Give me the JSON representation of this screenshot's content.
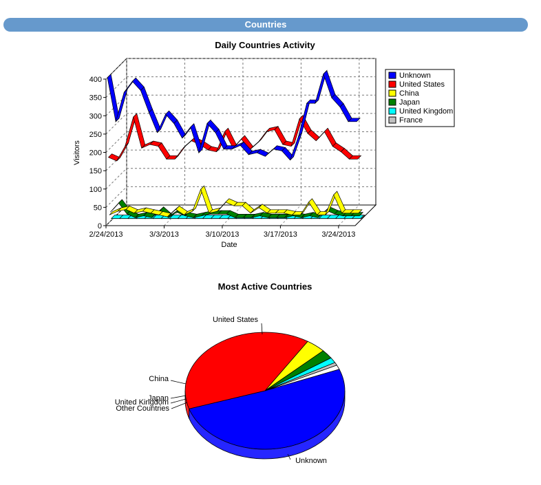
{
  "header": {
    "title": "Countries"
  },
  "chart_data": [
    {
      "type": "line",
      "title": "Daily Countries Activity",
      "xlabel": "Date",
      "ylabel": "Visitors",
      "ylim": [
        0,
        400
      ],
      "yticks": [
        "0",
        "50",
        "100",
        "150",
        "200",
        "250",
        "300",
        "350",
        "400"
      ],
      "xticks": [
        "2/24/2013",
        "3/3/2013",
        "3/10/2013",
        "3/17/2013",
        "3/24/2013"
      ],
      "grid": true,
      "legend": "right",
      "x": [
        "2/24/2013",
        "2/25/2013",
        "2/26/2013",
        "2/27/2013",
        "2/28/2013",
        "3/1/2013",
        "3/2/2013",
        "3/3/2013",
        "3/4/2013",
        "3/5/2013",
        "3/6/2013",
        "3/7/2013",
        "3/8/2013",
        "3/9/2013",
        "3/10/2013",
        "3/11/2013",
        "3/12/2013",
        "3/13/2013",
        "3/14/2013",
        "3/15/2013",
        "3/16/2013",
        "3/17/2013",
        "3/18/2013",
        "3/19/2013",
        "3/20/2013",
        "3/21/2013",
        "3/22/2013",
        "3/23/2013",
        "3/24/2013",
        "3/25/2013",
        "3/26/2013"
      ],
      "series": [
        {
          "name": "Unknown",
          "color": "#0000ff",
          "values": [
            400,
            280,
            360,
            390,
            365,
            305,
            250,
            300,
            275,
            235,
            265,
            195,
            275,
            250,
            205,
            205,
            215,
            190,
            195,
            185,
            205,
            200,
            175,
            240,
            330,
            330,
            410,
            345,
            320,
            280,
            280
          ]
        },
        {
          "name": "United States",
          "color": "#ff0000",
          "values": [
            180,
            170,
            210,
            290,
            205,
            215,
            210,
            175,
            175,
            205,
            225,
            215,
            200,
            195,
            250,
            205,
            230,
            200,
            220,
            250,
            255,
            215,
            210,
            285,
            245,
            225,
            250,
            210,
            195,
            175,
            175
          ]
        },
        {
          "name": "China",
          "color": "#ffff00",
          "values": [
            20,
            30,
            35,
            25,
            30,
            25,
            20,
            15,
            35,
            20,
            30,
            90,
            25,
            30,
            55,
            45,
            45,
            25,
            40,
            25,
            25,
            25,
            20,
            20,
            55,
            20,
            20,
            75,
            25,
            25,
            25
          ]
        },
        {
          "name": "Japan",
          "color": "#008000",
          "values": [
            25,
            50,
            20,
            10,
            15,
            10,
            30,
            10,
            25,
            15,
            10,
            15,
            20,
            20,
            20,
            10,
            10,
            10,
            15,
            10,
            10,
            10,
            15,
            10,
            15,
            10,
            30,
            20,
            15,
            15,
            15
          ]
        },
        {
          "name": "United Kingdom",
          "color": "#00ffff",
          "values": [
            5,
            5,
            5,
            5,
            5,
            5,
            5,
            5,
            5,
            5,
            5,
            5,
            5,
            5,
            5,
            5,
            5,
            5,
            5,
            5,
            5,
            5,
            5,
            5,
            5,
            5,
            5,
            5,
            5,
            5,
            5
          ]
        },
        {
          "name": "France",
          "color": "#c0c0c0",
          "values": [
            2,
            2,
            2,
            2,
            2,
            2,
            2,
            2,
            2,
            2,
            2,
            2,
            2,
            2,
            2,
            2,
            2,
            2,
            2,
            2,
            2,
            2,
            2,
            2,
            2,
            2,
            2,
            2,
            2,
            2,
            2
          ]
        }
      ]
    },
    {
      "type": "pie",
      "title": "Most Active Countries",
      "categories": [
        "Unknown",
        "United States",
        "China",
        "Japan",
        "United Kingdom",
        "France",
        "Other Countries"
      ],
      "values": [
        51,
        39,
        4,
        2.5,
        1.5,
        0.8,
        1.2
      ],
      "colors": [
        "#0000ff",
        "#ff0000",
        "#ffff00",
        "#008000",
        "#00ffff",
        "#c0c0c0",
        "#ffffff"
      ],
      "labels": {
        "unknown": "Unknown",
        "us": "United States",
        "china": "China",
        "japan": "Japan",
        "uk": "United Kingdom",
        "other": "Other Countries"
      }
    }
  ]
}
